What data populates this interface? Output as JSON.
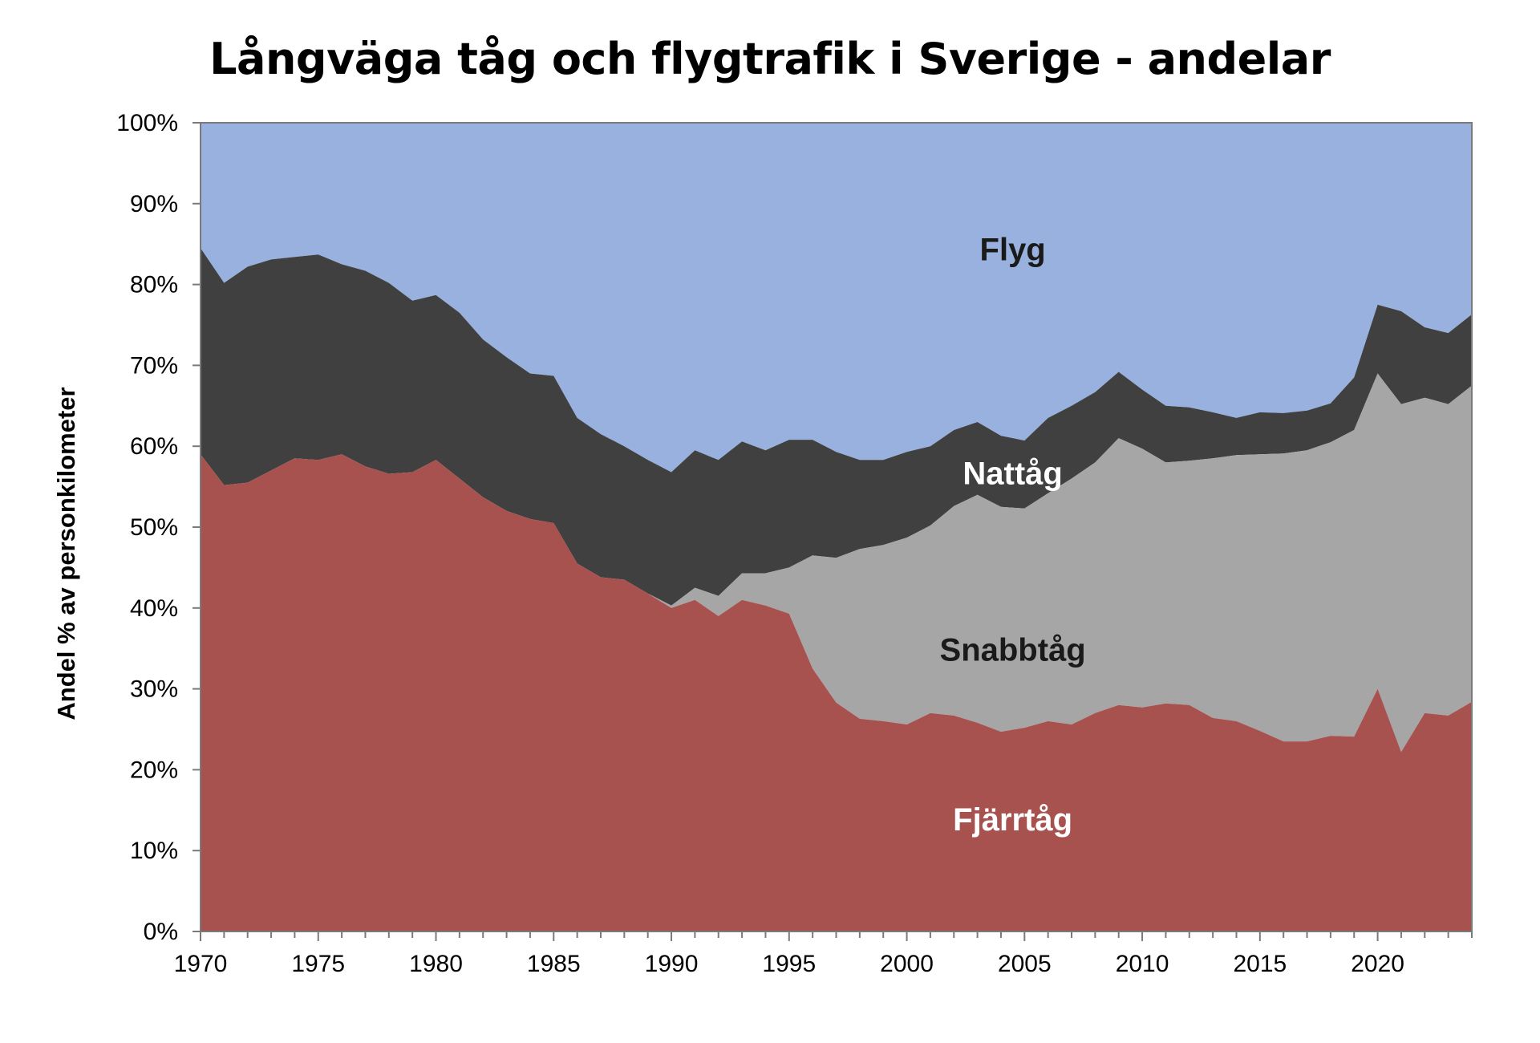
{
  "chart_data": {
    "type": "area",
    "stacked": true,
    "percent_stacked": true,
    "title": "Långväga tåg och flygtrafik i Sverige - andelar",
    "ylabel": "Andel % av personkilometer",
    "xlabel": "",
    "xlim": [
      1970,
      2024
    ],
    "ylim": [
      0,
      100
    ],
    "x_ticks": [
      "1970",
      "1975",
      "1980",
      "1985",
      "1990",
      "1995",
      "2000",
      "2005",
      "2010",
      "2015",
      "2020"
    ],
    "y_ticks": [
      "0%",
      "10%",
      "20%",
      "30%",
      "40%",
      "50%",
      "60%",
      "70%",
      "80%",
      "90%",
      "100%"
    ],
    "grid": false,
    "legend": "none",
    "x": [
      1970,
      1971,
      1972,
      1973,
      1974,
      1975,
      1976,
      1977,
      1978,
      1979,
      1980,
      1981,
      1982,
      1983,
      1984,
      1985,
      1986,
      1987,
      1988,
      1989,
      1990,
      1991,
      1992,
      1993,
      1994,
      1995,
      1996,
      1997,
      1998,
      1999,
      2000,
      2001,
      2002,
      2003,
      2004,
      2005,
      2006,
      2007,
      2008,
      2009,
      2010,
      2011,
      2012,
      2013,
      2014,
      2015,
      2016,
      2017,
      2018,
      2019,
      2020,
      2021,
      2022,
      2023,
      2024
    ],
    "series": [
      {
        "name": "Fjärrtåg",
        "color": "#A85250",
        "label_color": "#ffffff",
        "cumulative_top": [
          59,
          55.2,
          55.5,
          57,
          58.5,
          58.3,
          59,
          57.5,
          56.6,
          56.8,
          58.3,
          56,
          53.7,
          52,
          51,
          50.5,
          45.5,
          43.8,
          43.5,
          41.8,
          40,
          41,
          39,
          41,
          40.3,
          39.3,
          32.5,
          28.3,
          26.3,
          26,
          25.6,
          27,
          26.7,
          25.8,
          24.7,
          25.2,
          26,
          25.6,
          27,
          28,
          27.7,
          28.2,
          28,
          26.4,
          26,
          24.8,
          23.5,
          23.5,
          24.2,
          24.1,
          30,
          22.2,
          27,
          26.7,
          28.4
        ]
      },
      {
        "name": "Snabbtåg",
        "color": "#A6A6A6",
        "label_color": "#1a1a1a",
        "cumulative_top": [
          59,
          55.2,
          55.5,
          57,
          58.5,
          58.3,
          59,
          57.5,
          56.6,
          56.8,
          58.3,
          56,
          53.7,
          52,
          51,
          50.5,
          45.5,
          43.8,
          43.5,
          41.8,
          40.3,
          42.5,
          41.5,
          44.3,
          44.3,
          45,
          46.5,
          46.2,
          47.3,
          47.8,
          48.7,
          50.2,
          52.6,
          54,
          52.5,
          52.3,
          54.2,
          56,
          58,
          61,
          59.7,
          58,
          58.2,
          58.5,
          58.9,
          59,
          59.1,
          59.5,
          60.5,
          62,
          69,
          65.2,
          66,
          65.2,
          67.5
        ]
      },
      {
        "name": "Nattåg",
        "color": "#404040",
        "label_color": "#ffffff",
        "cumulative_top": [
          84.5,
          80.2,
          82.2,
          83.1,
          83.4,
          83.7,
          82.5,
          81.7,
          80.2,
          78,
          78.7,
          76.5,
          73.2,
          71,
          69,
          68.7,
          63.5,
          61.5,
          60,
          58.3,
          56.8,
          59.5,
          58.3,
          60.6,
          59.5,
          60.8,
          60.8,
          59.3,
          58.3,
          58.3,
          59.3,
          60,
          62,
          63,
          61.3,
          60.7,
          63.5,
          65,
          66.7,
          69.2,
          67,
          65,
          64.8,
          64.2,
          63.5,
          64.2,
          64.1,
          64.4,
          65.3,
          68.5,
          77.5,
          76.7,
          74.7,
          74,
          76.3
        ]
      },
      {
        "name": "Flyg",
        "color": "#98B1DE",
        "label_color": "#1a1a1a",
        "cumulative_top": [
          100,
          100,
          100,
          100,
          100,
          100,
          100,
          100,
          100,
          100,
          100,
          100,
          100,
          100,
          100,
          100,
          100,
          100,
          100,
          100,
          100,
          100,
          100,
          100,
          100,
          100,
          100,
          100,
          100,
          100,
          100,
          100,
          100,
          100,
          100,
          100,
          100,
          100,
          100,
          100,
          100,
          100,
          100,
          100,
          100,
          100,
          100,
          100,
          100,
          100,
          100,
          100,
          100,
          100,
          100
        ]
      }
    ]
  }
}
